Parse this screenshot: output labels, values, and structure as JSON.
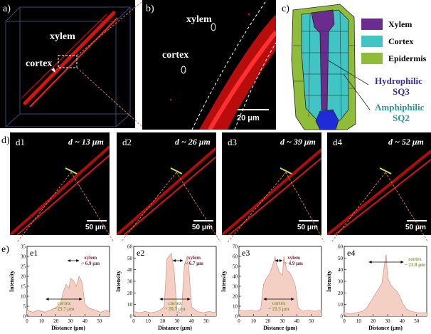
{
  "panel_a": {
    "label": "a)",
    "xylem": "xylem",
    "cortex": "cortex"
  },
  "panel_b": {
    "label": "b)",
    "xylem": "xylem",
    "cortex": "cortex",
    "scale": "20 μm"
  },
  "panel_c": {
    "label": "c)",
    "legend": [
      {
        "name": "Xylem",
        "color": "#6a2c8e"
      },
      {
        "name": "Cortex",
        "color": "#40c4c4"
      },
      {
        "name": "Epidermis",
        "color": "#8fbd3a"
      }
    ],
    "hydrophilic_line1": "Hydrophilic",
    "hydrophilic_line2": "SQ3",
    "amphiphilic_line1": "Amphiphilic",
    "amphiphilic_line2": "SQ2",
    "hydrophilic_color": "#3a2e8c",
    "amphiphilic_color": "#2a9b8f"
  },
  "row_d": {
    "label": "d)",
    "panels": [
      {
        "id": "d1",
        "depth": "d ~ 13 μm",
        "scale": "50 μm"
      },
      {
        "id": "d2",
        "depth": "d ~ 26 μm",
        "scale": "50 μm"
      },
      {
        "id": "d3",
        "depth": "d ~ 39 μm",
        "scale": "50 μm"
      },
      {
        "id": "d4",
        "depth": "d ~ 52 μm",
        "scale": "50 μm"
      }
    ]
  },
  "row_e": {
    "label": "e)"
  },
  "chart_data": [
    {
      "type": "area",
      "id": "e1",
      "xlabel": "Distance (μm)",
      "ylabel": "Intensity",
      "xlim": [
        0,
        57
      ],
      "ylim": [
        0,
        35
      ],
      "xticks": [
        0,
        10,
        20,
        30,
        40,
        50
      ],
      "yticks": [
        0,
        5,
        10,
        15,
        20,
        25,
        30,
        35
      ],
      "x": [
        0,
        4,
        8,
        12,
        16,
        19,
        21,
        23,
        25,
        27,
        29,
        30,
        32,
        34,
        36,
        38,
        40,
        43,
        47,
        51,
        55,
        57
      ],
      "y": [
        3,
        2,
        3,
        2,
        3,
        4,
        5,
        6,
        12,
        16,
        14,
        19,
        18,
        15,
        20,
        17,
        6,
        4,
        3,
        2,
        3,
        2
      ],
      "annotations": [
        {
          "label": "xylem",
          "value": "~ 6.9 μm",
          "range": [
            28,
            36
          ],
          "color": "#7b1f3a"
        },
        {
          "label": "cortex",
          "value": "~ 25.7 μm",
          "range": [
            13,
            38
          ],
          "color": "#7aa82a"
        }
      ]
    },
    {
      "type": "area",
      "id": "e2",
      "xlabel": "Distance (μm)",
      "ylabel": "Intensity",
      "xlim": [
        0,
        57
      ],
      "ylim": [
        0,
        60
      ],
      "xticks": [
        0,
        10,
        20,
        30,
        40,
        50
      ],
      "yticks": [
        0,
        10,
        20,
        30,
        40,
        50,
        60
      ],
      "x": [
        0,
        4,
        8,
        12,
        16,
        19,
        21,
        22,
        23,
        24,
        26,
        28,
        30,
        31,
        32,
        33,
        35,
        37,
        38,
        40,
        44,
        48,
        52,
        57
      ],
      "y": [
        4,
        3,
        4,
        3,
        4,
        6,
        8,
        28,
        49,
        51,
        54,
        38,
        3,
        4,
        3,
        3,
        44,
        52,
        42,
        8,
        4,
        3,
        4,
        3
      ],
      "annotations": [
        {
          "label": "xylem",
          "value": "~ 6.7 μm",
          "range": [
            27,
            34
          ],
          "color": "#7b1f3a"
        },
        {
          "label": "cortex",
          "value": "~ 20.7 μm",
          "range": [
            18,
            39
          ],
          "color": "#7aa82a"
        }
      ]
    },
    {
      "type": "area",
      "id": "e3",
      "xlabel": "Distance (μm)",
      "ylabel": "Intensity",
      "xlim": [
        0,
        57
      ],
      "ylim": [
        0,
        70
      ],
      "xticks": [
        0,
        10,
        20,
        30,
        40,
        50
      ],
      "yticks": [
        0,
        10,
        20,
        30,
        40,
        50,
        60,
        70
      ],
      "x": [
        0,
        4,
        8,
        12,
        15,
        17,
        19,
        21,
        23,
        25,
        26,
        28,
        30,
        31,
        33,
        35,
        37,
        39,
        41,
        44,
        48,
        52,
        57
      ],
      "y": [
        6,
        5,
        6,
        5,
        7,
        32,
        38,
        42,
        50,
        60,
        52,
        44,
        41,
        60,
        46,
        44,
        38,
        30,
        8,
        5,
        6,
        5,
        6
      ],
      "annotations": [
        {
          "label": "xylem",
          "value": "~ 4.9 μm",
          "range": [
            25,
            30
          ],
          "color": "#7b1f3a"
        },
        {
          "label": "cortex",
          "value": "~ 21.3 μm",
          "range": [
            17,
            38
          ],
          "color": "#7aa82a"
        }
      ]
    },
    {
      "type": "area",
      "id": "e4",
      "xlabel": "Distance (μm)",
      "ylabel": "Intensity",
      "xlim": [
        0,
        57
      ],
      "ylim": [
        0,
        60
      ],
      "xticks": [
        0,
        10,
        20,
        30,
        40,
        50
      ],
      "yticks": [
        0,
        10,
        20,
        30,
        40,
        50,
        60
      ],
      "x": [
        0,
        4,
        8,
        12,
        15,
        18,
        20,
        22,
        24,
        26,
        28,
        29,
        30,
        32,
        34,
        36,
        38,
        40,
        43,
        47,
        51,
        57
      ],
      "y": [
        3,
        2,
        3,
        4,
        6,
        12,
        16,
        20,
        24,
        28,
        46,
        53,
        33,
        27,
        24,
        22,
        18,
        12,
        6,
        4,
        3,
        3
      ],
      "annotations": [
        {
          "label": "cortex",
          "value": "~ 23.8 μm",
          "range": [
            17,
            41
          ],
          "color": "#7aa82a"
        }
      ]
    }
  ]
}
